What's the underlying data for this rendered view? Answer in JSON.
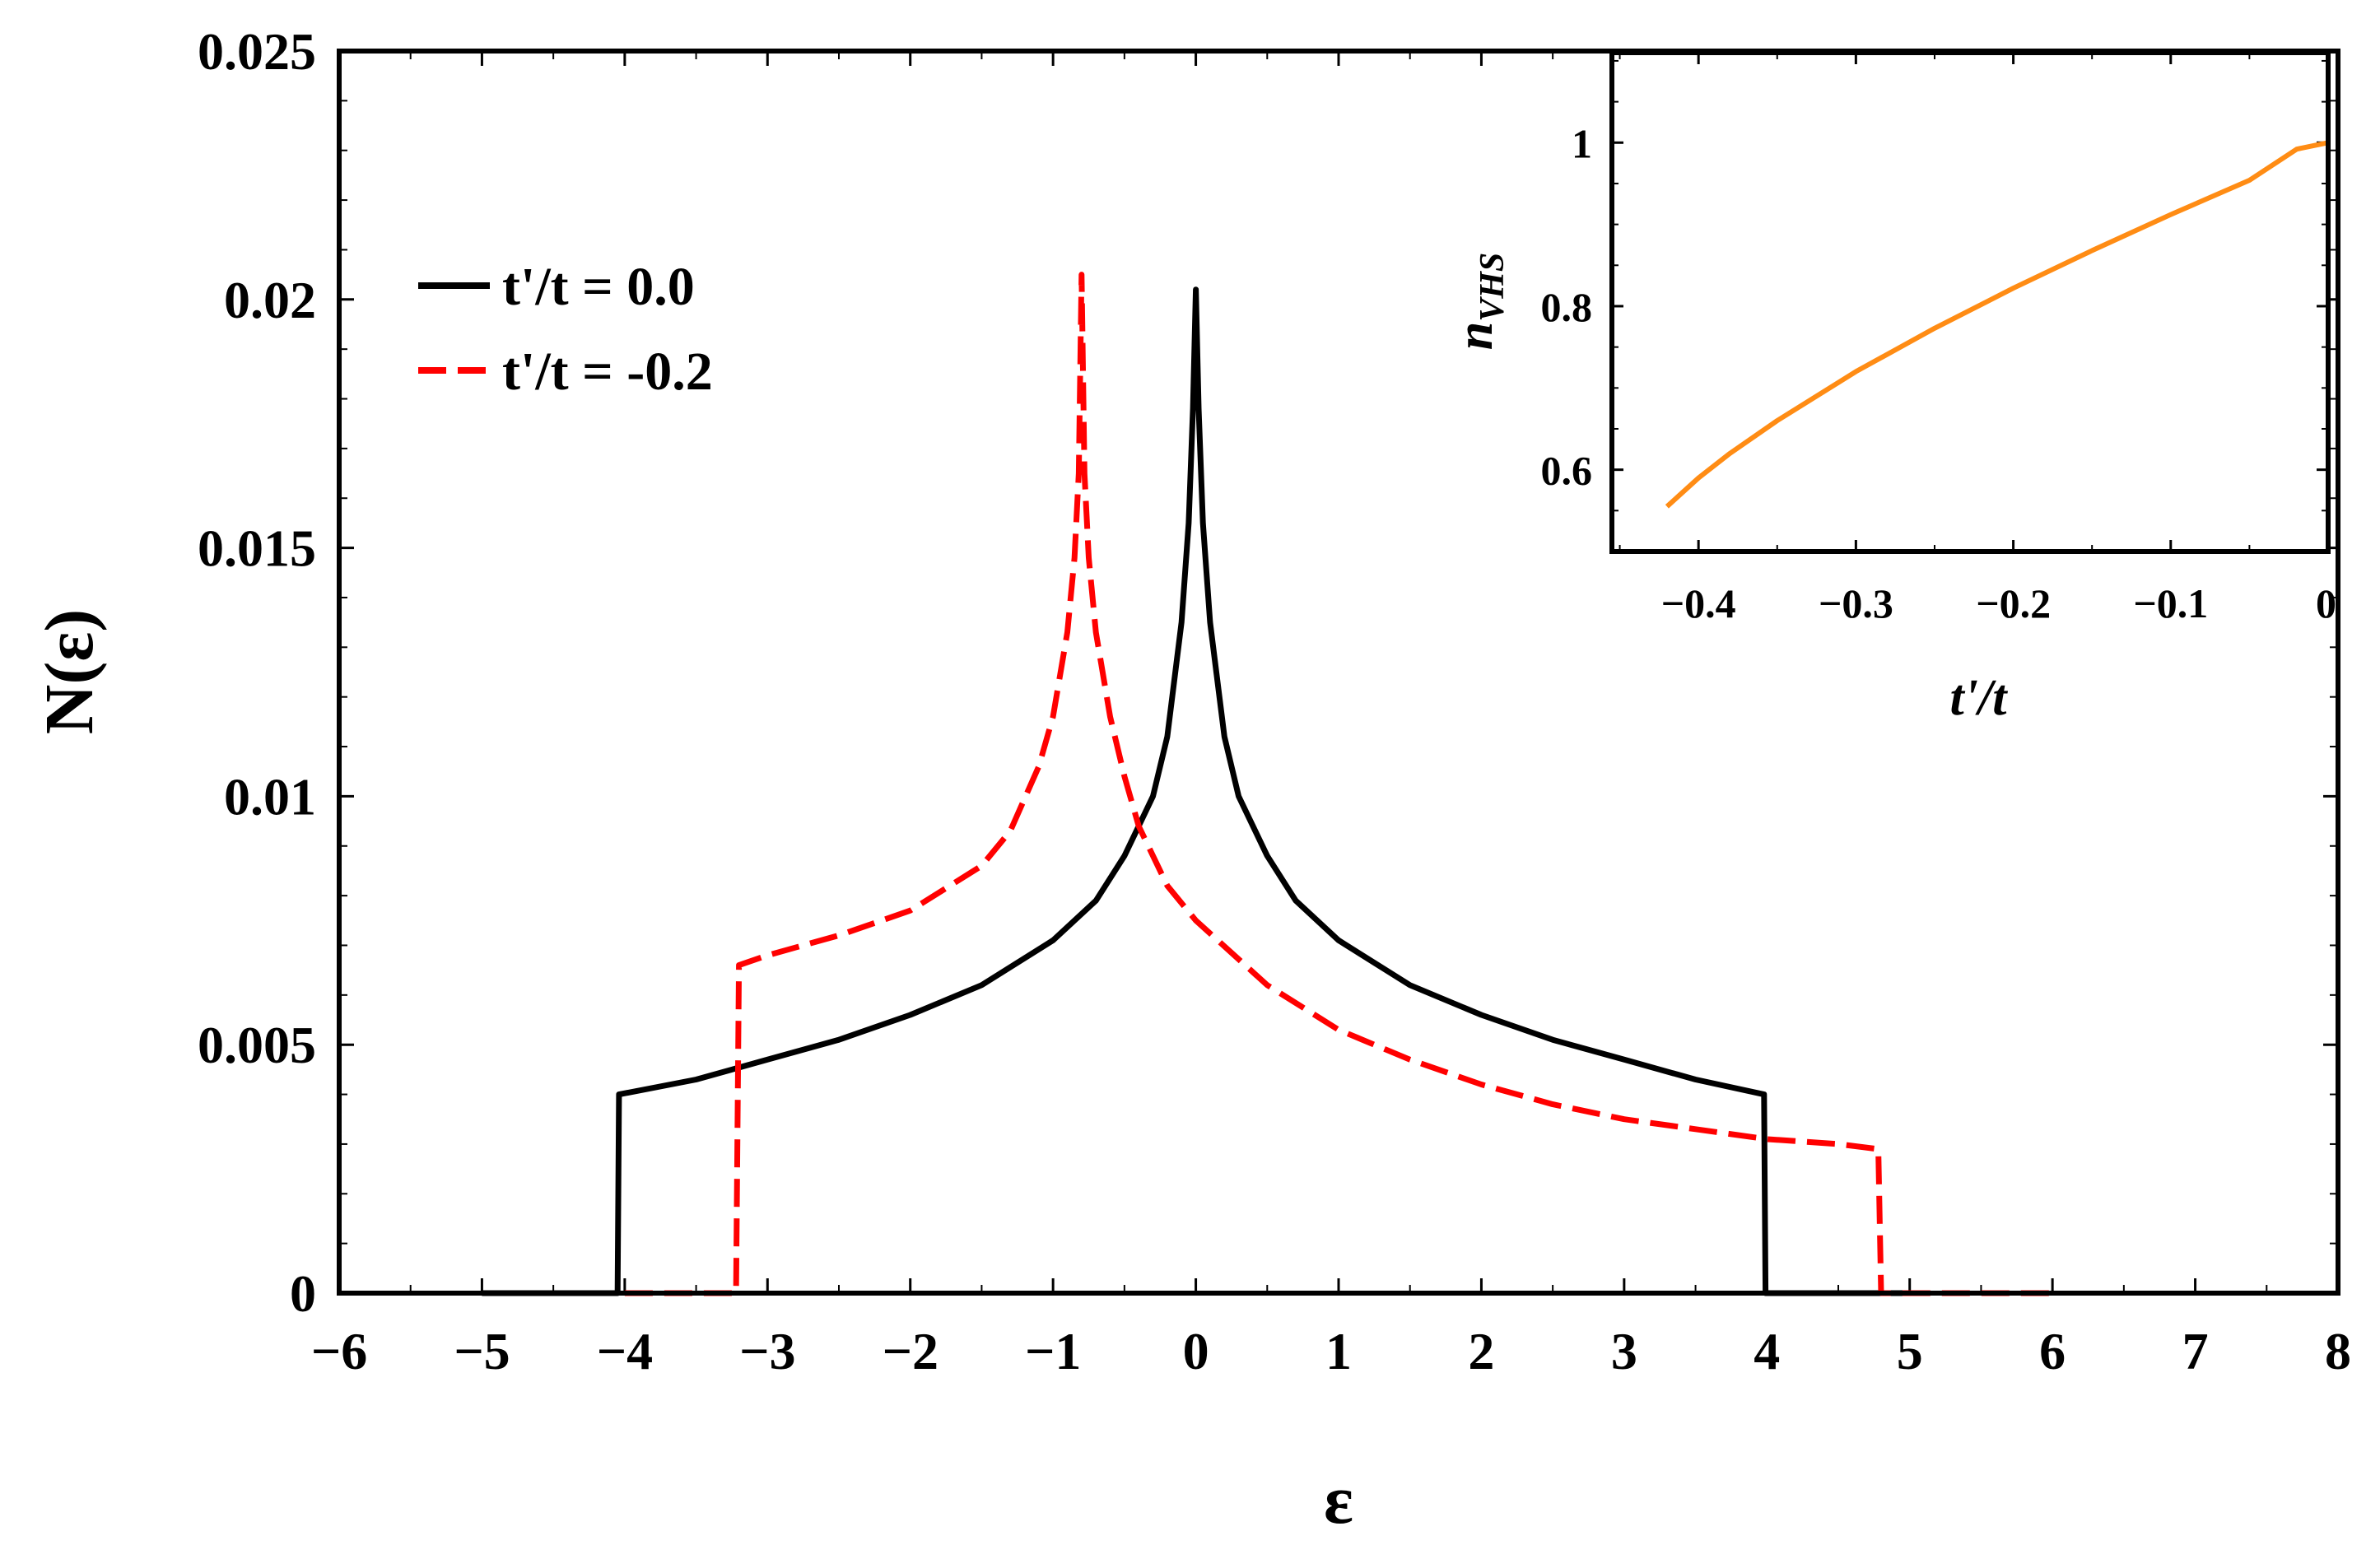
{
  "chart_data": [
    {
      "type": "line",
      "title": "",
      "xlabel": "ε",
      "ylabel": "N(ε)",
      "xlim": [
        -6,
        8
      ],
      "ylim": [
        0,
        0.025
      ],
      "xticks": [
        -6,
        -5,
        -4,
        -3,
        -2,
        -1,
        0,
        1,
        2,
        3,
        4,
        5,
        6,
        7,
        8
      ],
      "xtick_labels": [
        "−6",
        "−5",
        "−4",
        "−3",
        "−2",
        "−1",
        "0",
        "1",
        "2",
        "3",
        "4",
        "5",
        "6",
        "7",
        "8"
      ],
      "yticks": [
        0,
        0.005,
        0.01,
        0.015,
        0.02,
        0.025
      ],
      "ytick_labels": [
        "0",
        "0.005",
        "0.01",
        "0.015",
        "0.02",
        "0.025"
      ],
      "legend_position": "upper-left",
      "series": [
        {
          "name": "t'/t = 0.0",
          "color": "#000000",
          "style": "solid",
          "x": [
            -5,
            -4.05,
            -4.04,
            -3.5,
            -3.0,
            -2.5,
            -2.0,
            -1.5,
            -1.0,
            -0.7,
            -0.5,
            -0.3,
            -0.2,
            -0.1,
            -0.05,
            -0.02,
            0,
            0.02,
            0.05,
            0.1,
            0.2,
            0.3,
            0.5,
            0.7,
            1.0,
            1.5,
            2.0,
            2.5,
            3.0,
            3.5,
            3.98,
            3.99,
            5
          ],
          "values": [
            0,
            0,
            0.004,
            0.0043,
            0.0047,
            0.0051,
            0.0056,
            0.0062,
            0.0071,
            0.0079,
            0.0088,
            0.01,
            0.0112,
            0.0135,
            0.0155,
            0.0178,
            0.0202,
            0.0178,
            0.0155,
            0.0135,
            0.0112,
            0.01,
            0.0088,
            0.0079,
            0.0071,
            0.0062,
            0.0056,
            0.0051,
            0.0047,
            0.0043,
            0.004,
            0,
            0
          ]
        },
        {
          "name": "t'/t = -0.2",
          "color": "#ff0000",
          "style": "dashed",
          "x": [
            -4.0,
            -3.22,
            -3.2,
            -3.0,
            -2.5,
            -2.0,
            -1.5,
            -1.3,
            -1.1,
            -1.0,
            -0.9,
            -0.85,
            -0.82,
            -0.8,
            -0.78,
            -0.75,
            -0.7,
            -0.6,
            -0.5,
            -0.4,
            -0.2,
            0,
            0.5,
            1.0,
            1.5,
            2.0,
            2.5,
            3.0,
            3.5,
            4.0,
            4.5,
            4.78,
            4.8,
            6.0
          ],
          "values": [
            0,
            0,
            0.0066,
            0.0068,
            0.0072,
            0.0077,
            0.0086,
            0.0093,
            0.0106,
            0.0116,
            0.0133,
            0.0148,
            0.0165,
            0.0205,
            0.0165,
            0.0148,
            0.0133,
            0.0116,
            0.0104,
            0.0094,
            0.0082,
            0.0075,
            0.0062,
            0.0053,
            0.0047,
            0.0042,
            0.0038,
            0.0035,
            0.0033,
            0.0031,
            0.003,
            0.0029,
            0,
            0
          ]
        }
      ]
    },
    {
      "type": "line",
      "title": "",
      "xlabel": "t'/t",
      "ylabel": "n",
      "ylabel_subscript": "VHS",
      "xlim": [
        -0.455,
        0
      ],
      "ylim": [
        0.5,
        1.11
      ],
      "xticks": [
        -0.4,
        -0.3,
        -0.2,
        -0.1,
        0
      ],
      "xtick_labels": [
        "−0.4",
        "−0.3",
        "−0.2",
        "−0.1",
        "0"
      ],
      "yticks": [
        0.6,
        0.8,
        1
      ],
      "ytick_labels": [
        "0.6",
        "0.8",
        "1"
      ],
      "series": [
        {
          "name": "n_VHS",
          "color": "#ff8c14",
          "x": [
            -0.42,
            -0.4,
            -0.38,
            -0.35,
            -0.3,
            -0.25,
            -0.2,
            -0.15,
            -0.1,
            -0.05,
            -0.02,
            0
          ],
          "values": [
            0.555,
            0.59,
            0.62,
            0.66,
            0.72,
            0.773,
            0.822,
            0.868,
            0.912,
            0.954,
            0.992,
            1.0
          ]
        }
      ]
    }
  ]
}
